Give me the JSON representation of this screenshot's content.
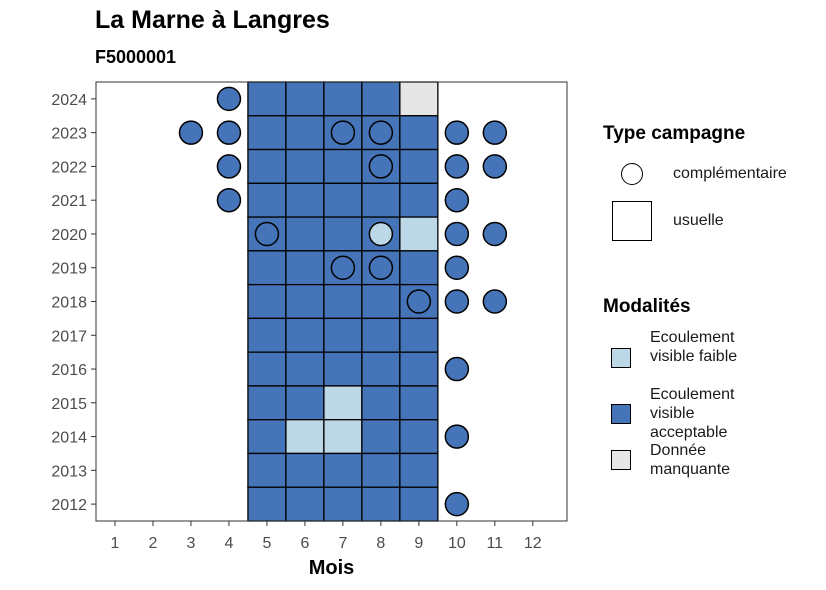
{
  "title": "La Marne à Langres",
  "subtitle": "F5000001",
  "chart_data": {
    "type": "heatmap",
    "xlabel": "Mois",
    "ylabel": "",
    "x_ticks": [
      1,
      2,
      3,
      4,
      5,
      6,
      7,
      8,
      9,
      10,
      11,
      12
    ],
    "y_ticks": [
      2012,
      2013,
      2014,
      2015,
      2016,
      2017,
      2018,
      2019,
      2020,
      2021,
      2022,
      2023,
      2024
    ],
    "grid": false,
    "colors": {
      "Ecoulement visible faible": "#bcd8e6",
      "Ecoulement visible acceptable": "#4574b8",
      "Donnée manquante": "#e6e6e6"
    },
    "legend_type": {
      "title": "Type campagne",
      "items": [
        {
          "label": "complémentaire",
          "shape": "circle"
        },
        {
          "label": "usuelle",
          "shape": "square"
        }
      ]
    },
    "legend_modalites": {
      "title": "Modalités",
      "items": [
        {
          "label": "Ecoulement visible faible",
          "color": "#bcd8e6"
        },
        {
          "label": "Ecoulement visible acceptable",
          "color": "#4574b8"
        },
        {
          "label": "Donnée manquante",
          "color": "#e6e6e6"
        }
      ]
    },
    "points": [
      {
        "year": 2024,
        "month": 4,
        "type": "complémentaire",
        "modalite": "Ecoulement visible acceptable"
      },
      {
        "year": 2024,
        "month": 5,
        "type": "usuelle",
        "modalite": "Ecoulement visible acceptable"
      },
      {
        "year": 2024,
        "month": 6,
        "type": "usuelle",
        "modalite": "Ecoulement visible acceptable"
      },
      {
        "year": 2024,
        "month": 7,
        "type": "usuelle",
        "modalite": "Ecoulement visible acceptable"
      },
      {
        "year": 2024,
        "month": 8,
        "type": "usuelle",
        "modalite": "Ecoulement visible acceptable"
      },
      {
        "year": 2024,
        "month": 9,
        "type": "usuelle",
        "modalite": "Donnée manquante"
      },
      {
        "year": 2023,
        "month": 3,
        "type": "complémentaire",
        "modalite": "Ecoulement visible acceptable"
      },
      {
        "year": 2023,
        "month": 4,
        "type": "complémentaire",
        "modalite": "Ecoulement visible acceptable"
      },
      {
        "year": 2023,
        "month": 5,
        "type": "usuelle",
        "modalite": "Ecoulement visible acceptable"
      },
      {
        "year": 2023,
        "month": 6,
        "type": "usuelle",
        "modalite": "Ecoulement visible acceptable"
      },
      {
        "year": 2023,
        "month": 7,
        "type": "usuelle",
        "modalite": "Ecoulement visible acceptable"
      },
      {
        "year": 2023,
        "month": 7,
        "type": "complémentaire",
        "modalite": "Ecoulement visible acceptable"
      },
      {
        "year": 2023,
        "month": 8,
        "type": "usuelle",
        "modalite": "Ecoulement visible acceptable"
      },
      {
        "year": 2023,
        "month": 8,
        "type": "complémentaire",
        "modalite": "Ecoulement visible acceptable"
      },
      {
        "year": 2023,
        "month": 9,
        "type": "usuelle",
        "modalite": "Ecoulement visible acceptable"
      },
      {
        "year": 2023,
        "month": 10,
        "type": "complémentaire",
        "modalite": "Ecoulement visible acceptable"
      },
      {
        "year": 2023,
        "month": 11,
        "type": "complémentaire",
        "modalite": "Ecoulement visible acceptable"
      },
      {
        "year": 2022,
        "month": 4,
        "type": "complémentaire",
        "modalite": "Ecoulement visible acceptable"
      },
      {
        "year": 2022,
        "month": 5,
        "type": "usuelle",
        "modalite": "Ecoulement visible acceptable"
      },
      {
        "year": 2022,
        "month": 6,
        "type": "usuelle",
        "modalite": "Ecoulement visible acceptable"
      },
      {
        "year": 2022,
        "month": 7,
        "type": "usuelle",
        "modalite": "Ecoulement visible acceptable"
      },
      {
        "year": 2022,
        "month": 8,
        "type": "usuelle",
        "modalite": "Ecoulement visible acceptable"
      },
      {
        "year": 2022,
        "month": 8,
        "type": "complémentaire",
        "modalite": "Ecoulement visible acceptable"
      },
      {
        "year": 2022,
        "month": 9,
        "type": "usuelle",
        "modalite": "Ecoulement visible acceptable"
      },
      {
        "year": 2022,
        "month": 10,
        "type": "complémentaire",
        "modalite": "Ecoulement visible acceptable"
      },
      {
        "year": 2022,
        "month": 11,
        "type": "complémentaire",
        "modalite": "Ecoulement visible acceptable"
      },
      {
        "year": 2021,
        "month": 4,
        "type": "complémentaire",
        "modalite": "Ecoulement visible acceptable"
      },
      {
        "year": 2021,
        "month": 5,
        "type": "usuelle",
        "modalite": "Ecoulement visible acceptable"
      },
      {
        "year": 2021,
        "month": 6,
        "type": "usuelle",
        "modalite": "Ecoulement visible acceptable"
      },
      {
        "year": 2021,
        "month": 7,
        "type": "usuelle",
        "modalite": "Ecoulement visible acceptable"
      },
      {
        "year": 2021,
        "month": 8,
        "type": "usuelle",
        "modalite": "Ecoulement visible acceptable"
      },
      {
        "year": 2021,
        "month": 9,
        "type": "usuelle",
        "modalite": "Ecoulement visible acceptable"
      },
      {
        "year": 2021,
        "month": 10,
        "type": "complémentaire",
        "modalite": "Ecoulement visible acceptable"
      },
      {
        "year": 2020,
        "month": 5,
        "type": "usuelle",
        "modalite": "Ecoulement visible acceptable"
      },
      {
        "year": 2020,
        "month": 5,
        "type": "complémentaire",
        "modalite": "Ecoulement visible acceptable"
      },
      {
        "year": 2020,
        "month": 6,
        "type": "usuelle",
        "modalite": "Ecoulement visible acceptable"
      },
      {
        "year": 2020,
        "month": 7,
        "type": "usuelle",
        "modalite": "Ecoulement visible acceptable"
      },
      {
        "year": 2020,
        "month": 8,
        "type": "usuelle",
        "modalite": "Ecoulement visible acceptable"
      },
      {
        "year": 2020,
        "month": 8,
        "type": "complémentaire",
        "modalite": "Ecoulement visible faible"
      },
      {
        "year": 2020,
        "month": 9,
        "type": "usuelle",
        "modalite": "Ecoulement visible faible"
      },
      {
        "year": 2020,
        "month": 10,
        "type": "complémentaire",
        "modalite": "Ecoulement visible acceptable"
      },
      {
        "year": 2020,
        "month": 11,
        "type": "complémentaire",
        "modalite": "Ecoulement visible acceptable"
      },
      {
        "year": 2019,
        "month": 5,
        "type": "usuelle",
        "modalite": "Ecoulement visible acceptable"
      },
      {
        "year": 2019,
        "month": 6,
        "type": "usuelle",
        "modalite": "Ecoulement visible acceptable"
      },
      {
        "year": 2019,
        "month": 7,
        "type": "usuelle",
        "modalite": "Ecoulement visible acceptable"
      },
      {
        "year": 2019,
        "month": 7,
        "type": "complémentaire",
        "modalite": "Ecoulement visible acceptable"
      },
      {
        "year": 2019,
        "month": 8,
        "type": "usuelle",
        "modalite": "Ecoulement visible acceptable"
      },
      {
        "year": 2019,
        "month": 8,
        "type": "complémentaire",
        "modalite": "Ecoulement visible acceptable"
      },
      {
        "year": 2019,
        "month": 9,
        "type": "usuelle",
        "modalite": "Ecoulement visible acceptable"
      },
      {
        "year": 2019,
        "month": 10,
        "type": "complémentaire",
        "modalite": "Ecoulement visible acceptable"
      },
      {
        "year": 2018,
        "month": 5,
        "type": "usuelle",
        "modalite": "Ecoulement visible acceptable"
      },
      {
        "year": 2018,
        "month": 6,
        "type": "usuelle",
        "modalite": "Ecoulement visible acceptable"
      },
      {
        "year": 2018,
        "month": 7,
        "type": "usuelle",
        "modalite": "Ecoulement visible acceptable"
      },
      {
        "year": 2018,
        "month": 8,
        "type": "usuelle",
        "modalite": "Ecoulement visible acceptable"
      },
      {
        "year": 2018,
        "month": 9,
        "type": "usuelle",
        "modalite": "Ecoulement visible acceptable"
      },
      {
        "year": 2018,
        "month": 9,
        "type": "complémentaire",
        "modalite": "Ecoulement visible acceptable"
      },
      {
        "year": 2018,
        "month": 10,
        "type": "complémentaire",
        "modalite": "Ecoulement visible acceptable"
      },
      {
        "year": 2018,
        "month": 11,
        "type": "complémentaire",
        "modalite": "Ecoulement visible acceptable"
      },
      {
        "year": 2017,
        "month": 5,
        "type": "usuelle",
        "modalite": "Ecoulement visible acceptable"
      },
      {
        "year": 2017,
        "month": 6,
        "type": "usuelle",
        "modalite": "Ecoulement visible acceptable"
      },
      {
        "year": 2017,
        "month": 7,
        "type": "usuelle",
        "modalite": "Ecoulement visible acceptable"
      },
      {
        "year": 2017,
        "month": 8,
        "type": "usuelle",
        "modalite": "Ecoulement visible acceptable"
      },
      {
        "year": 2017,
        "month": 9,
        "type": "usuelle",
        "modalite": "Ecoulement visible acceptable"
      },
      {
        "year": 2016,
        "month": 5,
        "type": "usuelle",
        "modalite": "Ecoulement visible acceptable"
      },
      {
        "year": 2016,
        "month": 6,
        "type": "usuelle",
        "modalite": "Ecoulement visible acceptable"
      },
      {
        "year": 2016,
        "month": 7,
        "type": "usuelle",
        "modalite": "Ecoulement visible acceptable"
      },
      {
        "year": 2016,
        "month": 8,
        "type": "usuelle",
        "modalite": "Ecoulement visible acceptable"
      },
      {
        "year": 2016,
        "month": 9,
        "type": "usuelle",
        "modalite": "Ecoulement visible acceptable"
      },
      {
        "year": 2016,
        "month": 10,
        "type": "complémentaire",
        "modalite": "Ecoulement visible acceptable"
      },
      {
        "year": 2015,
        "month": 5,
        "type": "usuelle",
        "modalite": "Ecoulement visible acceptable"
      },
      {
        "year": 2015,
        "month": 6,
        "type": "usuelle",
        "modalite": "Ecoulement visible acceptable"
      },
      {
        "year": 2015,
        "month": 7,
        "type": "usuelle",
        "modalite": "Ecoulement visible faible"
      },
      {
        "year": 2015,
        "month": 8,
        "type": "usuelle",
        "modalite": "Ecoulement visible acceptable"
      },
      {
        "year": 2015,
        "month": 9,
        "type": "usuelle",
        "modalite": "Ecoulement visible acceptable"
      },
      {
        "year": 2014,
        "month": 5,
        "type": "usuelle",
        "modalite": "Ecoulement visible acceptable"
      },
      {
        "year": 2014,
        "month": 6,
        "type": "usuelle",
        "modalite": "Ecoulement visible faible"
      },
      {
        "year": 2014,
        "month": 7,
        "type": "usuelle",
        "modalite": "Ecoulement visible faible"
      },
      {
        "year": 2014,
        "month": 8,
        "type": "usuelle",
        "modalite": "Ecoulement visible acceptable"
      },
      {
        "year": 2014,
        "month": 9,
        "type": "usuelle",
        "modalite": "Ecoulement visible acceptable"
      },
      {
        "year": 2014,
        "month": 10,
        "type": "complémentaire",
        "modalite": "Ecoulement visible acceptable"
      },
      {
        "year": 2013,
        "month": 5,
        "type": "usuelle",
        "modalite": "Ecoulement visible acceptable"
      },
      {
        "year": 2013,
        "month": 6,
        "type": "usuelle",
        "modalite": "Ecoulement visible acceptable"
      },
      {
        "year": 2013,
        "month": 7,
        "type": "usuelle",
        "modalite": "Ecoulement visible acceptable"
      },
      {
        "year": 2013,
        "month": 8,
        "type": "usuelle",
        "modalite": "Ecoulement visible acceptable"
      },
      {
        "year": 2013,
        "month": 9,
        "type": "usuelle",
        "modalite": "Ecoulement visible acceptable"
      },
      {
        "year": 2012,
        "month": 5,
        "type": "usuelle",
        "modalite": "Ecoulement visible acceptable"
      },
      {
        "year": 2012,
        "month": 6,
        "type": "usuelle",
        "modalite": "Ecoulement visible acceptable"
      },
      {
        "year": 2012,
        "month": 7,
        "type": "usuelle",
        "modalite": "Ecoulement visible acceptable"
      },
      {
        "year": 2012,
        "month": 8,
        "type": "usuelle",
        "modalite": "Ecoulement visible acceptable"
      },
      {
        "year": 2012,
        "month": 9,
        "type": "usuelle",
        "modalite": "Ecoulement visible acceptable"
      },
      {
        "year": 2012,
        "month": 10,
        "type": "complémentaire",
        "modalite": "Ecoulement visible acceptable"
      }
    ]
  }
}
